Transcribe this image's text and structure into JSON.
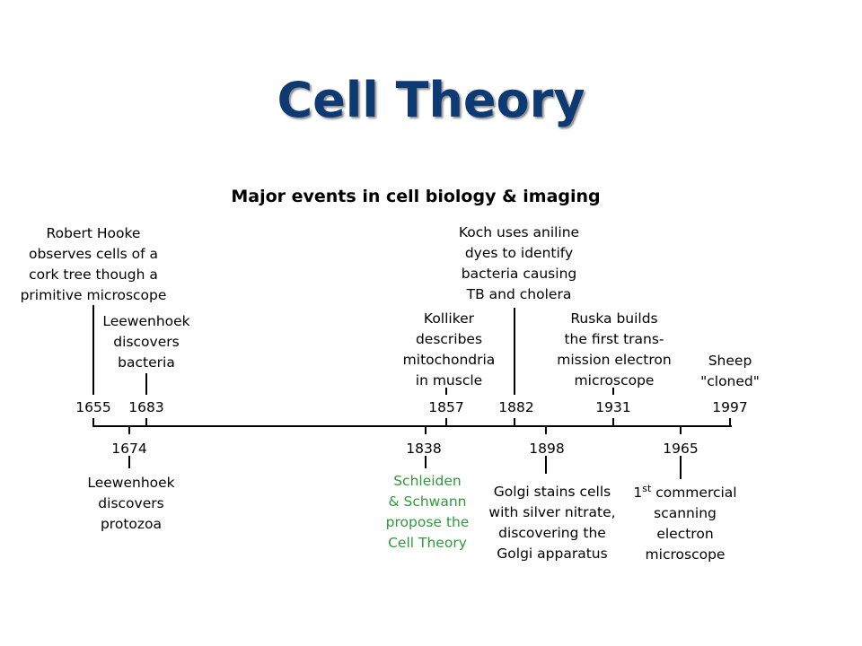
{
  "slide": {
    "title": "Cell Theory"
  },
  "timeline": {
    "title": "Major events in cell biology & imaging",
    "colors": {
      "text": "#000000",
      "highlight": "#2e9a3a",
      "title_blue": "#0d3a73"
    },
    "events": [
      {
        "year": "1655",
        "side": "above",
        "lines": [
          "Robert Hooke",
          "observes cells of a",
          "cork tree though a",
          "primitive microscope"
        ]
      },
      {
        "year": "1683",
        "side": "above",
        "lines": [
          "Leewenhoek",
          "discovers",
          "bacteria"
        ]
      },
      {
        "year": "1857",
        "side": "above",
        "lines": [
          "Kolliker",
          "describes",
          "mitochondria",
          "in muscle"
        ]
      },
      {
        "year": "1882",
        "side": "above",
        "lines": [
          "Koch uses aniline",
          "dyes to identify",
          "bacteria causing",
          "TB and cholera"
        ]
      },
      {
        "year": "1931",
        "side": "above",
        "lines": [
          "Ruska builds",
          "the first trans-",
          "mission electron",
          "microscope"
        ]
      },
      {
        "year": "1997",
        "side": "above",
        "lines": [
          "Sheep",
          "\"cloned\""
        ]
      },
      {
        "year": "1674",
        "side": "below",
        "lines": [
          "Leewenhoek",
          "discovers",
          "protozoa"
        ]
      },
      {
        "year": "1838",
        "side": "below",
        "highlight": true,
        "lines": [
          "Schleiden",
          "& Schwann",
          "propose the",
          "Cell Theory"
        ]
      },
      {
        "year": "1898",
        "side": "below",
        "lines": [
          "Golgi stains cells",
          "with silver nitrate,",
          "discovering  the",
          "Golgi apparatus"
        ]
      },
      {
        "year": "1965",
        "side": "below",
        "lines_rich": [
          [
            {
              "text": "1"
            },
            {
              "text": "st",
              "sup": true
            },
            {
              "text": " commercial"
            }
          ],
          [
            {
              "text": "scanning"
            }
          ],
          [
            {
              "text": "electron"
            }
          ],
          [
            {
              "text": "microscope"
            }
          ]
        ]
      }
    ]
  }
}
